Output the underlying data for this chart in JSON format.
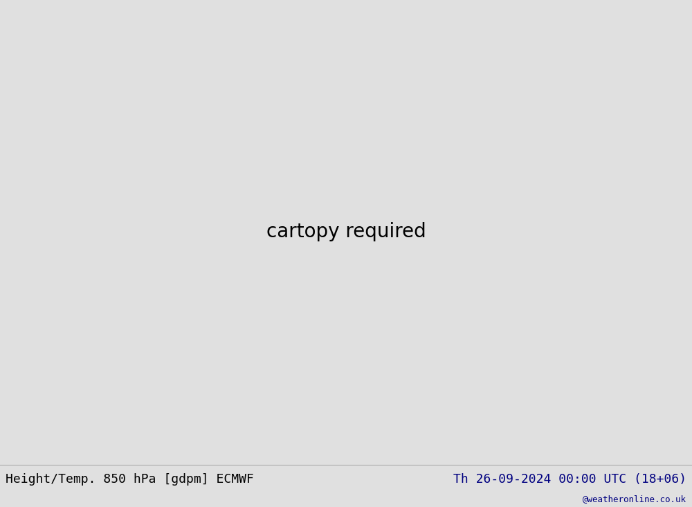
{
  "title_left": "Height/Temp. 850 hPa [gdpm] ECMWF",
  "title_right": "Th 26-09-2024 00:00 UTC (18+06)",
  "watermark": "@weatheronline.co.uk",
  "fig_width": 10.0,
  "fig_height": 7.33,
  "dpi": 100,
  "background_color": "#e0e0e0",
  "land_color": "#e0e0e0",
  "ocean_color": "#e0e0e0",
  "green_fill_color": "#adf5a0",
  "border_color": "#888888",
  "coastline_color": "#888888",
  "black_contour_color": "#000000",
  "orange_color": "#FF8C00",
  "cyan_color": "#00BFBF",
  "lime_color": "#7FBF00",
  "red_color": "#CC0000",
  "pink_color": "#FF00AA",
  "title_color": "#000000",
  "right_title_color": "#000080",
  "bottom_bar_color": "#d8d8d8",
  "proj_lon0": -100,
  "proj_lat0": 50,
  "extent": [
    -170,
    -30,
    10,
    80
  ],
  "title_fontsize": 13,
  "watermark_fontsize": 9
}
